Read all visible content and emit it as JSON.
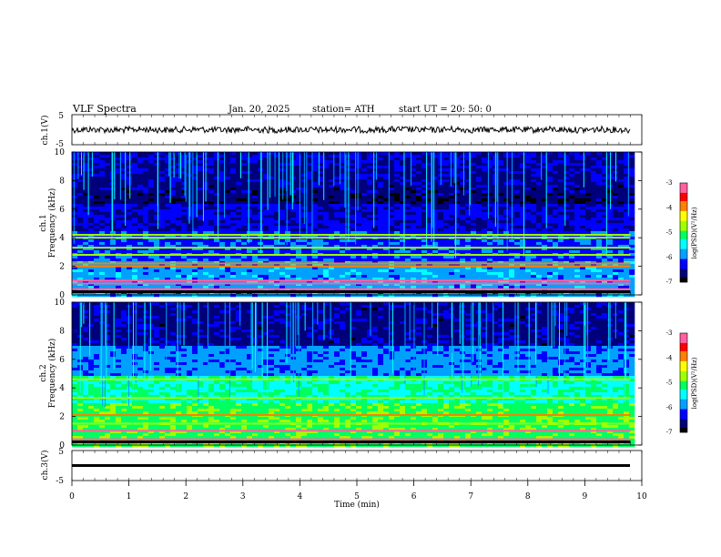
{
  "header": {
    "title": "VLF  Spectra",
    "date": "Jan. 20, 2025",
    "station": "station= ATH",
    "start": "start  UT  =   20: 50: 0"
  },
  "colors": {
    "colormap": [
      "#000000",
      "#00007a",
      "#0000ff",
      "#00a0ff",
      "#00ffff",
      "#00ff60",
      "#a0ff00",
      "#ffff00",
      "#ff8000",
      "#ff0000",
      "#ff60a0",
      "#ffffff"
    ]
  },
  "chart_data": [
    {
      "id": "ch1-waveform",
      "type": "line",
      "ylabel": "ch.1(V)",
      "ylim": [
        -5,
        5
      ],
      "y_ticks": [
        "5",
        "-5"
      ],
      "xlim": [
        0,
        10
      ],
      "series": [
        {
          "values_description_mean": 0,
          "noise_amplitude": 0.6
        }
      ]
    },
    {
      "id": "ch1-spectrogram",
      "type": "heatmap",
      "ylabel": "ch.1\nFrequency  (kHz)",
      "ylabel_lines": [
        "ch.1",
        "Frequency  (kHz)"
      ],
      "ylim": [
        0,
        10
      ],
      "y_ticks": [
        "0",
        "2",
        "4",
        "6",
        "8",
        "10"
      ],
      "xlim": [
        0,
        9.8
      ],
      "colorbar": {
        "label": "log(PSD)(V²/Hz)",
        "range": [
          -7,
          -3
        ],
        "ticks": [
          "-3",
          "-4",
          "-5",
          "-6",
          "-7"
        ]
      },
      "bands_khz": [
        0.2,
        0.4,
        0.8,
        1.0,
        2.0,
        2.2,
        2.8,
        3.3,
        4.0,
        4.2
      ]
    },
    {
      "id": "ch2-spectrogram",
      "type": "heatmap",
      "ylabel": "ch.2\nFrequency  (kHz)",
      "ylabel_lines": [
        "ch.2",
        "Frequency  (kHz)"
      ],
      "ylim": [
        0,
        10
      ],
      "y_ticks": [
        "0",
        "2",
        "4",
        "6",
        "8",
        "10"
      ],
      "xlim": [
        0,
        9.8
      ],
      "colorbar": {
        "label": "log(PSD)(V²/Hz)",
        "range": [
          -7,
          -3
        ],
        "ticks": [
          "-3",
          "-4",
          "-5",
          "-6",
          "-7"
        ]
      },
      "bands_khz": [
        0.2,
        0.4,
        1.0,
        1.5,
        2.1,
        3.3,
        4.6
      ]
    },
    {
      "id": "ch3-waveform",
      "type": "line",
      "ylabel": "ch.3(V)",
      "ylim": [
        -5,
        5
      ],
      "y_ticks": [
        "5",
        "-5"
      ],
      "xlim": [
        0,
        10
      ],
      "xlabel": "Time  (min)",
      "x_ticks": [
        "0",
        "1",
        "2",
        "3",
        "4",
        "5",
        "6",
        "7",
        "8",
        "9",
        "10"
      ],
      "series": [
        {
          "values_description_mean": 0,
          "noise_amplitude": 0.1
        }
      ]
    }
  ]
}
